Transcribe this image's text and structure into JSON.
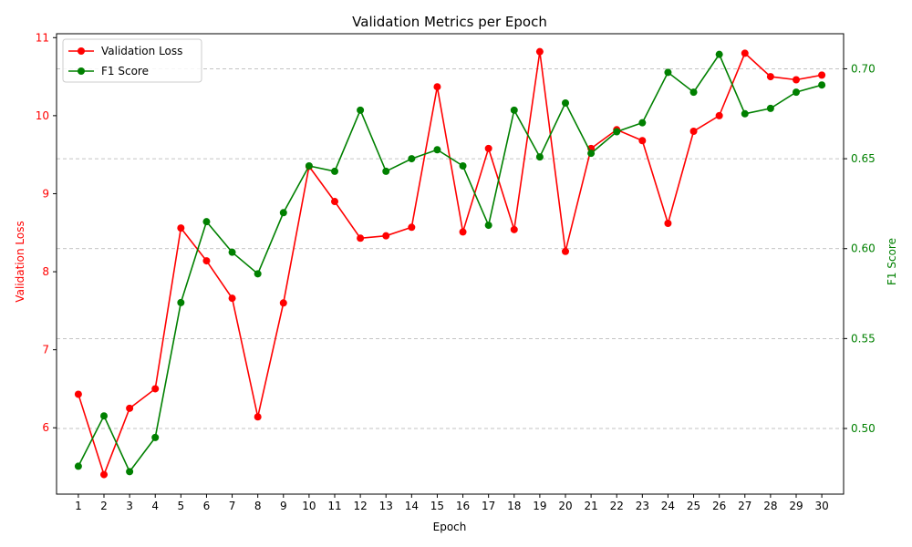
{
  "chart_data": {
    "type": "line",
    "title": "Validation Metrics per Epoch",
    "xlabel": "Epoch",
    "x": [
      1,
      2,
      3,
      4,
      5,
      6,
      7,
      8,
      9,
      10,
      11,
      12,
      13,
      14,
      15,
      16,
      17,
      18,
      19,
      20,
      21,
      22,
      23,
      24,
      25,
      26,
      27,
      28,
      29,
      30
    ],
    "y_left": {
      "label": "Validation Loss",
      "range": [
        5.15,
        11.05
      ],
      "ticks": [
        6,
        7,
        8,
        9,
        10,
        11
      ],
      "color": "#ff0000"
    },
    "y_right": {
      "label": "F1 Score",
      "range": [
        0.4635,
        0.7195
      ],
      "ticks": [
        0.5,
        0.55,
        0.6,
        0.65,
        0.7
      ],
      "tick_labels": [
        "0.50",
        "0.55",
        "0.60",
        "0.65",
        "0.70"
      ],
      "color": "#008000"
    },
    "series": [
      {
        "name": "Validation Loss",
        "axis": "left",
        "color": "#ff0000",
        "values": [
          6.43,
          5.4,
          6.25,
          6.5,
          8.56,
          8.14,
          7.66,
          6.14,
          7.6,
          9.35,
          8.9,
          8.43,
          8.46,
          8.57,
          10.37,
          8.51,
          9.58,
          8.54,
          10.82,
          8.26,
          9.58,
          9.82,
          9.68,
          8.62,
          9.8,
          10.0,
          10.8,
          10.5,
          10.46,
          10.52
        ]
      },
      {
        "name": "F1 Score",
        "axis": "right",
        "color": "#008000",
        "values": [
          0.479,
          0.507,
          0.476,
          0.495,
          0.57,
          0.615,
          0.598,
          0.586,
          0.62,
          0.646,
          0.643,
          0.677,
          0.643,
          0.65,
          0.655,
          0.646,
          0.613,
          0.677,
          0.651,
          0.681,
          0.653,
          0.665,
          0.67,
          0.698,
          0.687,
          0.708,
          0.675,
          0.678,
          0.687,
          0.691
        ]
      }
    ],
    "grid": "horizontal-dashed (right axis)",
    "legend_position": "top-left"
  }
}
